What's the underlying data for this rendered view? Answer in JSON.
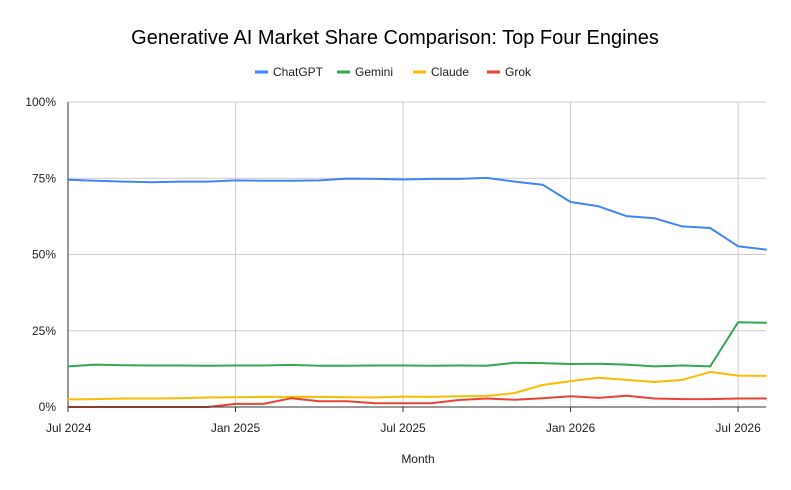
{
  "chart_data": {
    "type": "line",
    "title": "Generative AI Market Share Comparison: Top Four Engines",
    "xlabel": "Month",
    "ylabel": "",
    "x": [
      "2024-07",
      "2024-08",
      "2024-09",
      "2024-10",
      "2024-11",
      "2024-12",
      "2025-01",
      "2025-02",
      "2025-03",
      "2025-04",
      "2025-05",
      "2025-06",
      "2025-07",
      "2025-08",
      "2025-09",
      "2025-10",
      "2025-11",
      "2025-12",
      "2026-01",
      "2026-02",
      "2026-03",
      "2026-04",
      "2026-05",
      "2026-06",
      "2026-07",
      "2026-08"
    ],
    "x_ticks": [
      {
        "value": "2024-07",
        "label": "Jul 2024"
      },
      {
        "value": "2025-01",
        "label": "Jan 2025"
      },
      {
        "value": "2025-07",
        "label": "Jul 2025"
      },
      {
        "value": "2026-01",
        "label": "Jan 2026"
      },
      {
        "value": "2026-07",
        "label": "Jul 2026"
      }
    ],
    "y_ticks": [
      {
        "value": 0,
        "label": "0%"
      },
      {
        "value": 25,
        "label": "25%"
      },
      {
        "value": 50,
        "label": "50%"
      },
      {
        "value": 75,
        "label": "75%"
      },
      {
        "value": 100,
        "label": "100%"
      }
    ],
    "ylim": [
      0,
      100
    ],
    "grid": true,
    "legend_position": "top",
    "series": [
      {
        "name": "ChatGPT",
        "color": "#4285F4",
        "values": [
          74.5,
          74.2,
          73.9,
          73.7,
          73.9,
          73.9,
          74.3,
          74.2,
          74.2,
          74.3,
          74.9,
          74.8,
          74.6,
          74.8,
          74.8,
          75.1,
          73.9,
          72.9,
          67.2,
          65.8,
          62.6,
          61.9,
          59.2,
          58.7,
          52.7,
          51.6
        ]
      },
      {
        "name": "Gemini",
        "color": "#34A853",
        "values": [
          13.3,
          13.9,
          13.7,
          13.6,
          13.6,
          13.5,
          13.6,
          13.6,
          13.8,
          13.5,
          13.5,
          13.6,
          13.6,
          13.5,
          13.6,
          13.5,
          14.5,
          14.4,
          14.1,
          14.2,
          13.9,
          13.3,
          13.6,
          13.3,
          27.8,
          27.6
        ]
      },
      {
        "name": "Claude",
        "color": "#FBBC04",
        "values": [
          2.5,
          2.6,
          2.8,
          2.8,
          2.9,
          3.1,
          3.2,
          3.3,
          3.3,
          3.3,
          3.2,
          3.1,
          3.4,
          3.3,
          3.5,
          3.6,
          4.6,
          7.2,
          8.5,
          9.6,
          8.9,
          8.2,
          8.9,
          11.5,
          10.3,
          10.2
        ]
      },
      {
        "name": "Grok",
        "color": "#EA4335",
        "values": [
          0,
          0,
          0,
          0,
          0,
          0,
          1.0,
          1.0,
          2.9,
          1.9,
          1.9,
          1.2,
          1.2,
          1.2,
          2.3,
          2.8,
          2.4,
          2.9,
          3.5,
          3.0,
          3.7,
          2.8,
          2.6,
          2.6,
          2.8,
          2.8
        ]
      }
    ]
  }
}
